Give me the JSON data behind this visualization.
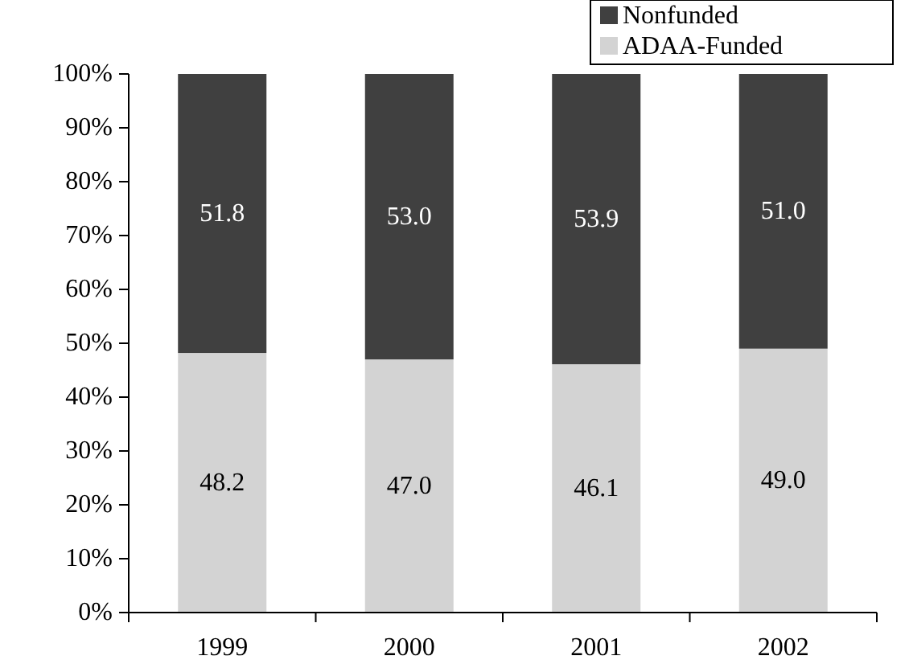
{
  "chart_data": {
    "type": "bar",
    "stacked": true,
    "categories": [
      "1999",
      "2000",
      "2001",
      "2002"
    ],
    "series": [
      {
        "name": "ADAA-Funded",
        "color": "#d3d3d3",
        "values": [
          48.2,
          47.0,
          46.1,
          49.0
        ],
        "value_labels": [
          "48.2",
          "47.0",
          "46.1",
          "49.0"
        ]
      },
      {
        "name": "Nonfunded",
        "color": "#404040",
        "values": [
          51.8,
          53.0,
          53.9,
          51.0
        ],
        "value_labels": [
          "51.8",
          "53.0",
          "53.9",
          "51.0"
        ]
      }
    ],
    "ylim": [
      0,
      100
    ],
    "yticks": [
      {
        "value": 0,
        "label": "0%"
      },
      {
        "value": 10,
        "label": "10%"
      },
      {
        "value": 20,
        "label": "20%"
      },
      {
        "value": 30,
        "label": "30%"
      },
      {
        "value": 40,
        "label": "40%"
      },
      {
        "value": 50,
        "label": "50%"
      },
      {
        "value": 60,
        "label": "60%"
      },
      {
        "value": 70,
        "label": "70%"
      },
      {
        "value": 80,
        "label": "80%"
      },
      {
        "value": 90,
        "label": "90%"
      },
      {
        "value": 100,
        "label": "100%"
      }
    ],
    "grid": false,
    "legend": "top right"
  }
}
